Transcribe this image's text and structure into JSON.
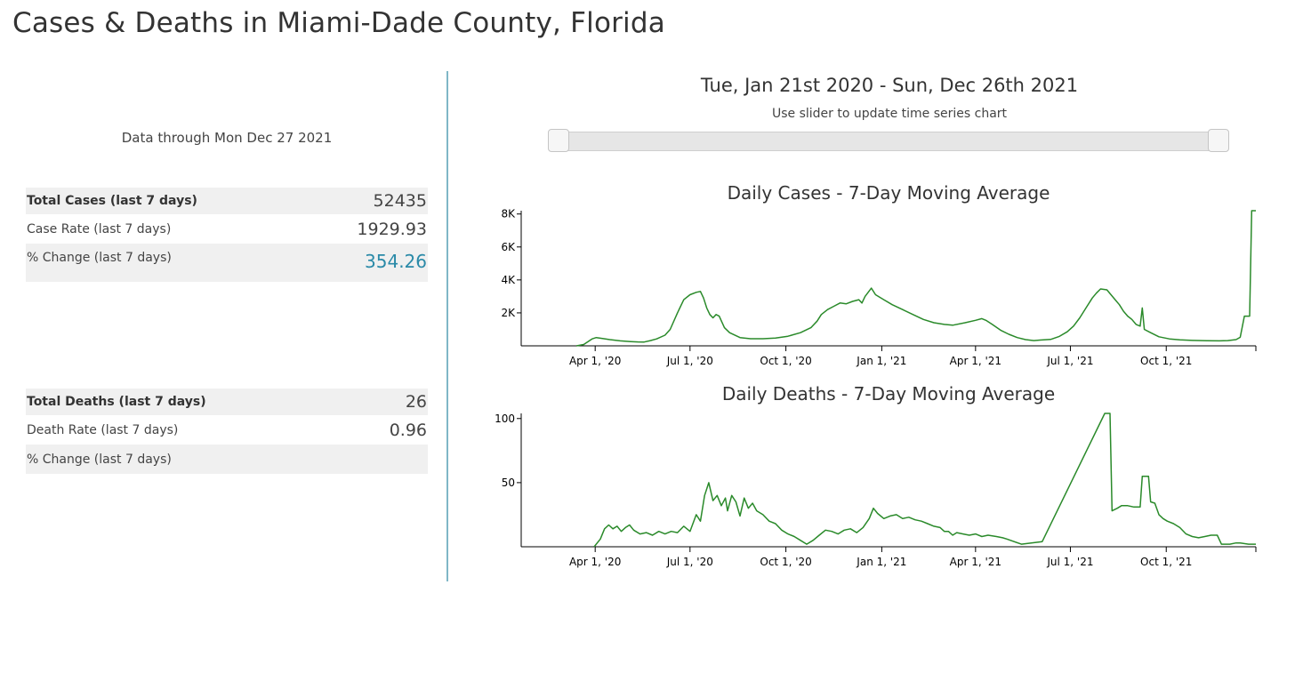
{
  "page": {
    "title": "Cases & Deaths in Miami-Dade County, Florida"
  },
  "summary": {
    "data_through": "Data through Mon Dec 27 2021",
    "cases": {
      "rows": [
        {
          "label": "Total Cases (last 7 days)",
          "value": "52435"
        },
        {
          "label": "Case Rate (last 7 days)",
          "value": "1929.93"
        },
        {
          "label": "% Change (last 7 days)",
          "value": "354.26"
        }
      ]
    },
    "deaths": {
      "rows": [
        {
          "label": "Total Deaths (last 7 days)",
          "value": "26"
        },
        {
          "label": "Death Rate (last 7 days)",
          "value": "0.96"
        },
        {
          "label": "% Change (last 7 days)",
          "value": ""
        }
      ]
    }
  },
  "time_range": {
    "title": "Tue, Jan 21st 2020 - Sun, Dec 26th 2021",
    "hint": "Use slider to update time series chart",
    "slider": {
      "start_fraction": 0.0,
      "end_fraction": 1.0
    }
  },
  "colors": {
    "line": "#2a8a2a",
    "accent": "#2a8aa8",
    "divider": "#7fb7c7"
  },
  "chart_data": [
    {
      "type": "line",
      "title": "Daily Cases - 7-Day Moving Average",
      "xlabel": "",
      "ylabel": "",
      "x_domain_days": [
        0,
        705
      ],
      "ylim": [
        0,
        8200
      ],
      "y_ticks": [
        {
          "v": 2000,
          "label": "2K"
        },
        {
          "v": 4000,
          "label": "4K"
        },
        {
          "v": 6000,
          "label": "6K"
        },
        {
          "v": 8000,
          "label": "8K"
        }
      ],
      "x_ticks": [
        {
          "d": 71,
          "label": "Apr 1, '20"
        },
        {
          "d": 162,
          "label": "Jul 1, '20"
        },
        {
          "d": 254,
          "label": "Oct 1, '20"
        },
        {
          "d": 346,
          "label": "Jan 1, '21"
        },
        {
          "d": 436,
          "label": "Apr 1, '21"
        },
        {
          "d": 527,
          "label": "Jul 1, '21"
        },
        {
          "d": 619,
          "label": "Oct 1, '21"
        }
      ],
      "series": [
        {
          "name": "Daily Cases",
          "points": [
            [
              53,
              0
            ],
            [
              56,
              30
            ],
            [
              60,
              80
            ],
            [
              64,
              250
            ],
            [
              68,
              420
            ],
            [
              72,
              500
            ],
            [
              78,
              440
            ],
            [
              85,
              380
            ],
            [
              95,
              300
            ],
            [
              105,
              260
            ],
            [
              112,
              240
            ],
            [
              118,
              230
            ],
            [
              124,
              320
            ],
            [
              130,
              420
            ],
            [
              138,
              650
            ],
            [
              143,
              1000
            ],
            [
              150,
              2000
            ],
            [
              156,
              2800
            ],
            [
              162,
              3100
            ],
            [
              168,
              3250
            ],
            [
              172,
              3300
            ],
            [
              175,
              2900
            ],
            [
              178,
              2300
            ],
            [
              181,
              1900
            ],
            [
              184,
              1700
            ],
            [
              187,
              1900
            ],
            [
              190,
              1800
            ],
            [
              195,
              1100
            ],
            [
              200,
              800
            ],
            [
              210,
              500
            ],
            [
              220,
              430
            ],
            [
              232,
              430
            ],
            [
              244,
              470
            ],
            [
              256,
              580
            ],
            [
              268,
              800
            ],
            [
              278,
              1100
            ],
            [
              284,
              1500
            ],
            [
              288,
              1900
            ],
            [
              294,
              2200
            ],
            [
              300,
              2400
            ],
            [
              306,
              2600
            ],
            [
              312,
              2550
            ],
            [
              318,
              2700
            ],
            [
              324,
              2800
            ],
            [
              327,
              2600
            ],
            [
              330,
              3000
            ],
            [
              336,
              3500
            ],
            [
              340,
              3100
            ],
            [
              348,
              2800
            ],
            [
              356,
              2500
            ],
            [
              366,
              2200
            ],
            [
              376,
              1900
            ],
            [
              386,
              1600
            ],
            [
              396,
              1400
            ],
            [
              406,
              1300
            ],
            [
              414,
              1250
            ],
            [
              426,
              1400
            ],
            [
              436,
              1550
            ],
            [
              442,
              1650
            ],
            [
              446,
              1550
            ],
            [
              452,
              1300
            ],
            [
              460,
              950
            ],
            [
              468,
              700
            ],
            [
              476,
              500
            ],
            [
              484,
              380
            ],
            [
              492,
              320
            ],
            [
              498,
              350
            ],
            [
              508,
              390
            ],
            [
              516,
              560
            ],
            [
              524,
              850
            ],
            [
              530,
              1200
            ],
            [
              536,
              1700
            ],
            [
              542,
              2300
            ],
            [
              548,
              2900
            ],
            [
              552,
              3200
            ],
            [
              556,
              3450
            ],
            [
              562,
              3400
            ],
            [
              566,
              3100
            ],
            [
              570,
              2800
            ],
            [
              574,
              2500
            ],
            [
              578,
              2100
            ],
            [
              582,
              1800
            ],
            [
              586,
              1600
            ],
            [
              590,
              1300
            ],
            [
              594,
              1200
            ],
            [
              596,
              2300
            ],
            [
              598,
              1000
            ],
            [
              604,
              800
            ],
            [
              612,
              550
            ],
            [
              622,
              420
            ],
            [
              632,
              360
            ],
            [
              644,
              330
            ],
            [
              658,
              310
            ],
            [
              670,
              300
            ],
            [
              678,
              320
            ],
            [
              686,
              380
            ],
            [
              690,
              520
            ],
            [
              694,
              1800
            ],
            [
              699,
              1800
            ],
            [
              701,
              8200
            ],
            [
              705,
              8200
            ]
          ]
        }
      ]
    },
    {
      "type": "line",
      "title": "Daily Deaths - 7-Day Moving Average",
      "xlabel": "",
      "ylabel": "",
      "x_domain_days": [
        0,
        705
      ],
      "ylim": [
        0,
        104
      ],
      "y_ticks": [
        {
          "v": 50,
          "label": "50"
        },
        {
          "v": 100,
          "label": "100"
        }
      ],
      "x_ticks": [
        {
          "d": 71,
          "label": "Apr 1, '20"
        },
        {
          "d": 162,
          "label": "Jul 1, '20"
        },
        {
          "d": 254,
          "label": "Oct 1, '20"
        },
        {
          "d": 346,
          "label": "Jan 1, '21"
        },
        {
          "d": 436,
          "label": "Apr 1, '21"
        },
        {
          "d": 527,
          "label": "Jul 1, '21"
        },
        {
          "d": 619,
          "label": "Oct 1, '21"
        }
      ],
      "series": [
        {
          "name": "Daily Deaths",
          "points": [
            [
              70,
              0
            ],
            [
              76,
              6
            ],
            [
              80,
              14
            ],
            [
              84,
              17
            ],
            [
              88,
              14
            ],
            [
              92,
              16
            ],
            [
              96,
              12
            ],
            [
              100,
              15
            ],
            [
              104,
              17
            ],
            [
              108,
              13
            ],
            [
              114,
              10
            ],
            [
              120,
              11
            ],
            [
              126,
              9
            ],
            [
              132,
              12
            ],
            [
              138,
              10
            ],
            [
              144,
              12
            ],
            [
              150,
              11
            ],
            [
              156,
              16
            ],
            [
              162,
              12
            ],
            [
              168,
              25
            ],
            [
              172,
              20
            ],
            [
              176,
              40
            ],
            [
              180,
              50
            ],
            [
              184,
              36
            ],
            [
              188,
              40
            ],
            [
              192,
              32
            ],
            [
              196,
              38
            ],
            [
              198,
              28
            ],
            [
              202,
              40
            ],
            [
              206,
              35
            ],
            [
              210,
              24
            ],
            [
              214,
              38
            ],
            [
              218,
              30
            ],
            [
              222,
              34
            ],
            [
              226,
              28
            ],
            [
              232,
              25
            ],
            [
              238,
              20
            ],
            [
              244,
              18
            ],
            [
              250,
              13
            ],
            [
              256,
              10
            ],
            [
              262,
              8
            ],
            [
              268,
              5
            ],
            [
              274,
              2
            ],
            [
              280,
              5
            ],
            [
              286,
              9
            ],
            [
              292,
              13
            ],
            [
              298,
              12
            ],
            [
              304,
              10
            ],
            [
              310,
              13
            ],
            [
              316,
              14
            ],
            [
              322,
              11
            ],
            [
              328,
              15
            ],
            [
              334,
              22
            ],
            [
              338,
              30
            ],
            [
              342,
              26
            ],
            [
              348,
              22
            ],
            [
              354,
              24
            ],
            [
              360,
              25
            ],
            [
              366,
              22
            ],
            [
              372,
              23
            ],
            [
              378,
              21
            ],
            [
              384,
              20
            ],
            [
              390,
              18
            ],
            [
              396,
              16
            ],
            [
              402,
              15
            ],
            [
              406,
              12
            ],
            [
              410,
              12
            ],
            [
              414,
              9
            ],
            [
              418,
              11
            ],
            [
              424,
              10
            ],
            [
              430,
              9
            ],
            [
              436,
              10
            ],
            [
              442,
              8
            ],
            [
              448,
              9
            ],
            [
              456,
              8
            ],
            [
              462,
              7
            ],
            [
              466,
              6
            ],
            [
              480,
              2
            ],
            [
              500,
              4
            ],
            [
              560,
              104
            ],
            [
              565,
              104
            ],
            [
              567,
              28
            ],
            [
              572,
              30
            ],
            [
              576,
              32
            ],
            [
              582,
              32
            ],
            [
              588,
              31
            ],
            [
              594,
              31
            ],
            [
              596,
              55
            ],
            [
              602,
              55
            ],
            [
              604,
              35
            ],
            [
              608,
              34
            ],
            [
              612,
              25
            ],
            [
              616,
              22
            ],
            [
              620,
              20
            ],
            [
              626,
              18
            ],
            [
              632,
              15
            ],
            [
              638,
              10
            ],
            [
              644,
              8
            ],
            [
              650,
              7
            ],
            [
              656,
              8
            ],
            [
              662,
              9
            ],
            [
              668,
              9
            ],
            [
              672,
              2
            ],
            [
              680,
              2
            ],
            [
              686,
              3
            ],
            [
              690,
              3
            ],
            [
              698,
              2
            ],
            [
              705,
              2
            ]
          ]
        }
      ]
    }
  ]
}
